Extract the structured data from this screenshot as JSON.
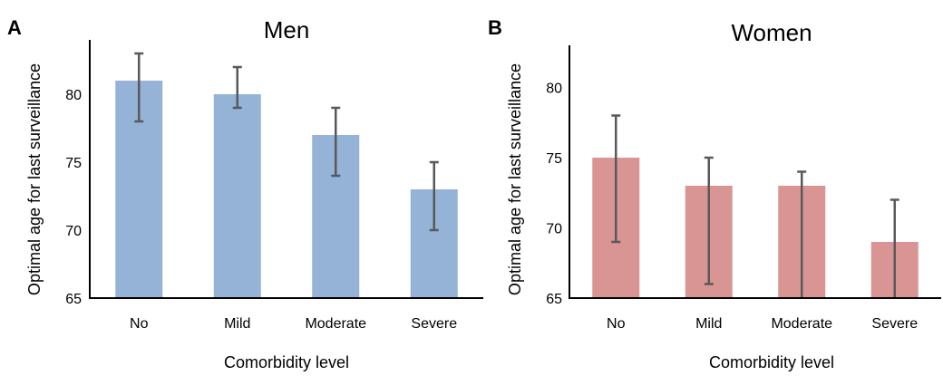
{
  "chart_data": [
    {
      "type": "bar",
      "panel": "A",
      "title": "Men",
      "xlabel": "Comorbidity level",
      "ylabel": "Optimal age for last surveillance",
      "categories": [
        "No",
        "Mild",
        "Moderate",
        "Severe"
      ],
      "values": [
        81,
        80,
        77,
        73
      ],
      "error_low": [
        78,
        79,
        74,
        70
      ],
      "error_high": [
        83,
        82,
        79,
        75
      ],
      "ylim": [
        65,
        84
      ],
      "yticks": [
        65,
        70,
        75,
        80
      ],
      "color": "#95b3d7",
      "grid": false
    },
    {
      "type": "bar",
      "panel": "B",
      "title": "Women",
      "xlabel": "Comorbidity level",
      "ylabel": "Optimal age for last surveillance",
      "categories": [
        "No",
        "Mild",
        "Moderate",
        "Severe"
      ],
      "values": [
        75,
        73,
        73,
        69
      ],
      "error_low": [
        69,
        66,
        65,
        65
      ],
      "error_high": [
        78,
        75,
        74,
        72
      ],
      "ylim": [
        65,
        83
      ],
      "yticks": [
        65,
        70,
        75,
        80
      ],
      "color": "#d99594",
      "grid": false
    }
  ]
}
